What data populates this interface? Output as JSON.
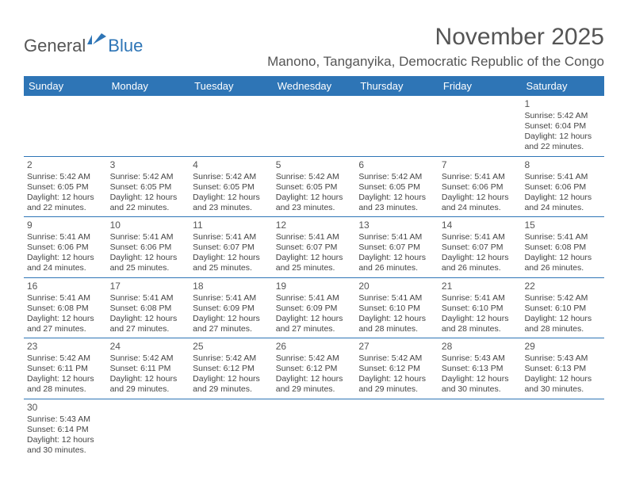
{
  "brand": {
    "part1": "General",
    "part2": "Blue"
  },
  "title": "November 2025",
  "location": "Manono, Tanganyika, Democratic Republic of the Congo",
  "colors": {
    "header_bg": "#2e75b6",
    "header_text": "#ffffff",
    "border": "#2e75b6",
    "text": "#444444",
    "title_text": "#555555"
  },
  "day_names": [
    "Sunday",
    "Monday",
    "Tuesday",
    "Wednesday",
    "Thursday",
    "Friday",
    "Saturday"
  ],
  "weeks": [
    [
      {
        "empty": true
      },
      {
        "empty": true
      },
      {
        "empty": true
      },
      {
        "empty": true
      },
      {
        "empty": true
      },
      {
        "empty": true
      },
      {
        "day": "1",
        "sunrise": "Sunrise: 5:42 AM",
        "sunset": "Sunset: 6:04 PM",
        "daylight1": "Daylight: 12 hours",
        "daylight2": "and 22 minutes."
      }
    ],
    [
      {
        "day": "2",
        "sunrise": "Sunrise: 5:42 AM",
        "sunset": "Sunset: 6:05 PM",
        "daylight1": "Daylight: 12 hours",
        "daylight2": "and 22 minutes."
      },
      {
        "day": "3",
        "sunrise": "Sunrise: 5:42 AM",
        "sunset": "Sunset: 6:05 PM",
        "daylight1": "Daylight: 12 hours",
        "daylight2": "and 22 minutes."
      },
      {
        "day": "4",
        "sunrise": "Sunrise: 5:42 AM",
        "sunset": "Sunset: 6:05 PM",
        "daylight1": "Daylight: 12 hours",
        "daylight2": "and 23 minutes."
      },
      {
        "day": "5",
        "sunrise": "Sunrise: 5:42 AM",
        "sunset": "Sunset: 6:05 PM",
        "daylight1": "Daylight: 12 hours",
        "daylight2": "and 23 minutes."
      },
      {
        "day": "6",
        "sunrise": "Sunrise: 5:42 AM",
        "sunset": "Sunset: 6:05 PM",
        "daylight1": "Daylight: 12 hours",
        "daylight2": "and 23 minutes."
      },
      {
        "day": "7",
        "sunrise": "Sunrise: 5:41 AM",
        "sunset": "Sunset: 6:06 PM",
        "daylight1": "Daylight: 12 hours",
        "daylight2": "and 24 minutes."
      },
      {
        "day": "8",
        "sunrise": "Sunrise: 5:41 AM",
        "sunset": "Sunset: 6:06 PM",
        "daylight1": "Daylight: 12 hours",
        "daylight2": "and 24 minutes."
      }
    ],
    [
      {
        "day": "9",
        "sunrise": "Sunrise: 5:41 AM",
        "sunset": "Sunset: 6:06 PM",
        "daylight1": "Daylight: 12 hours",
        "daylight2": "and 24 minutes."
      },
      {
        "day": "10",
        "sunrise": "Sunrise: 5:41 AM",
        "sunset": "Sunset: 6:06 PM",
        "daylight1": "Daylight: 12 hours",
        "daylight2": "and 25 minutes."
      },
      {
        "day": "11",
        "sunrise": "Sunrise: 5:41 AM",
        "sunset": "Sunset: 6:07 PM",
        "daylight1": "Daylight: 12 hours",
        "daylight2": "and 25 minutes."
      },
      {
        "day": "12",
        "sunrise": "Sunrise: 5:41 AM",
        "sunset": "Sunset: 6:07 PM",
        "daylight1": "Daylight: 12 hours",
        "daylight2": "and 25 minutes."
      },
      {
        "day": "13",
        "sunrise": "Sunrise: 5:41 AM",
        "sunset": "Sunset: 6:07 PM",
        "daylight1": "Daylight: 12 hours",
        "daylight2": "and 26 minutes."
      },
      {
        "day": "14",
        "sunrise": "Sunrise: 5:41 AM",
        "sunset": "Sunset: 6:07 PM",
        "daylight1": "Daylight: 12 hours",
        "daylight2": "and 26 minutes."
      },
      {
        "day": "15",
        "sunrise": "Sunrise: 5:41 AM",
        "sunset": "Sunset: 6:08 PM",
        "daylight1": "Daylight: 12 hours",
        "daylight2": "and 26 minutes."
      }
    ],
    [
      {
        "day": "16",
        "sunrise": "Sunrise: 5:41 AM",
        "sunset": "Sunset: 6:08 PM",
        "daylight1": "Daylight: 12 hours",
        "daylight2": "and 27 minutes."
      },
      {
        "day": "17",
        "sunrise": "Sunrise: 5:41 AM",
        "sunset": "Sunset: 6:08 PM",
        "daylight1": "Daylight: 12 hours",
        "daylight2": "and 27 minutes."
      },
      {
        "day": "18",
        "sunrise": "Sunrise: 5:41 AM",
        "sunset": "Sunset: 6:09 PM",
        "daylight1": "Daylight: 12 hours",
        "daylight2": "and 27 minutes."
      },
      {
        "day": "19",
        "sunrise": "Sunrise: 5:41 AM",
        "sunset": "Sunset: 6:09 PM",
        "daylight1": "Daylight: 12 hours",
        "daylight2": "and 27 minutes."
      },
      {
        "day": "20",
        "sunrise": "Sunrise: 5:41 AM",
        "sunset": "Sunset: 6:10 PM",
        "daylight1": "Daylight: 12 hours",
        "daylight2": "and 28 minutes."
      },
      {
        "day": "21",
        "sunrise": "Sunrise: 5:41 AM",
        "sunset": "Sunset: 6:10 PM",
        "daylight1": "Daylight: 12 hours",
        "daylight2": "and 28 minutes."
      },
      {
        "day": "22",
        "sunrise": "Sunrise: 5:42 AM",
        "sunset": "Sunset: 6:10 PM",
        "daylight1": "Daylight: 12 hours",
        "daylight2": "and 28 minutes."
      }
    ],
    [
      {
        "day": "23",
        "sunrise": "Sunrise: 5:42 AM",
        "sunset": "Sunset: 6:11 PM",
        "daylight1": "Daylight: 12 hours",
        "daylight2": "and 28 minutes."
      },
      {
        "day": "24",
        "sunrise": "Sunrise: 5:42 AM",
        "sunset": "Sunset: 6:11 PM",
        "daylight1": "Daylight: 12 hours",
        "daylight2": "and 29 minutes."
      },
      {
        "day": "25",
        "sunrise": "Sunrise: 5:42 AM",
        "sunset": "Sunset: 6:12 PM",
        "daylight1": "Daylight: 12 hours",
        "daylight2": "and 29 minutes."
      },
      {
        "day": "26",
        "sunrise": "Sunrise: 5:42 AM",
        "sunset": "Sunset: 6:12 PM",
        "daylight1": "Daylight: 12 hours",
        "daylight2": "and 29 minutes."
      },
      {
        "day": "27",
        "sunrise": "Sunrise: 5:42 AM",
        "sunset": "Sunset: 6:12 PM",
        "daylight1": "Daylight: 12 hours",
        "daylight2": "and 29 minutes."
      },
      {
        "day": "28",
        "sunrise": "Sunrise: 5:43 AM",
        "sunset": "Sunset: 6:13 PM",
        "daylight1": "Daylight: 12 hours",
        "daylight2": "and 30 minutes."
      },
      {
        "day": "29",
        "sunrise": "Sunrise: 5:43 AM",
        "sunset": "Sunset: 6:13 PM",
        "daylight1": "Daylight: 12 hours",
        "daylight2": "and 30 minutes."
      }
    ],
    [
      {
        "day": "30",
        "sunrise": "Sunrise: 5:43 AM",
        "sunset": "Sunset: 6:14 PM",
        "daylight1": "Daylight: 12 hours",
        "daylight2": "and 30 minutes."
      },
      {
        "empty": true
      },
      {
        "empty": true
      },
      {
        "empty": true
      },
      {
        "empty": true
      },
      {
        "empty": true
      },
      {
        "empty": true
      }
    ]
  ]
}
